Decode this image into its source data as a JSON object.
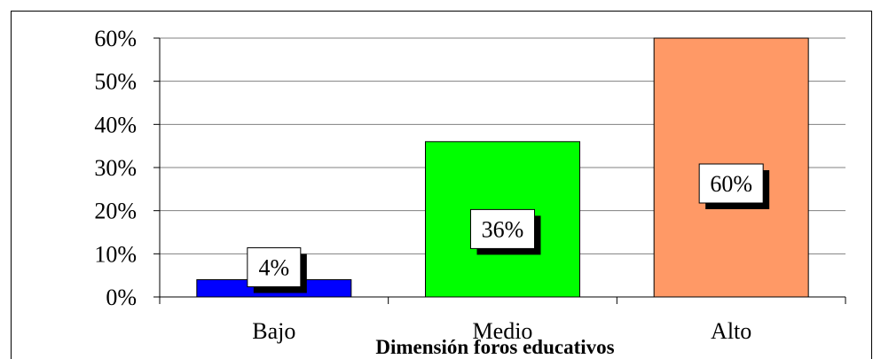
{
  "chart_data": {
    "type": "bar",
    "categories": [
      "Bajo",
      "Medio",
      "Alto"
    ],
    "values": [
      4,
      36,
      60
    ],
    "data_labels": [
      "4%",
      "36%",
      "60%"
    ],
    "colors": [
      "#0000ff",
      "#00ff00",
      "#ff9966"
    ],
    "title": "",
    "xlabel": "Dimensión foros educativos",
    "ylabel": "",
    "ylim": [
      0,
      60
    ],
    "yticks": [
      "0%",
      "10%",
      "20%",
      "30%",
      "40%",
      "50%",
      "60%"
    ],
    "grid": true,
    "legend": "none"
  }
}
